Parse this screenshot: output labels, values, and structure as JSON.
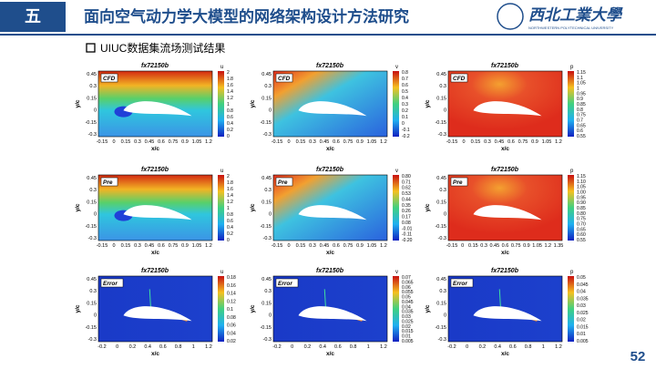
{
  "header": {
    "section": "五",
    "title": "面向空气动力学大模型的网络架构设计方法研究",
    "logo_cn": "西北工業大學",
    "logo_en": "NORTHWESTERN POLYTECHNICAL UNIVERSITY"
  },
  "subtitle": "UIUC数据集流场测试结果",
  "page_number": "52",
  "panels": [
    {
      "title": "fx72150b",
      "tag": "CFD",
      "variable": "u",
      "xlabel": "x/c",
      "ylabel": "y/c",
      "xticks": [
        "-0.15",
        "0",
        "0.15",
        "0.3",
        "0.45",
        "0.6",
        "0.75",
        "0.9",
        "1.05",
        "1.2"
      ],
      "yticks": [
        "0.45",
        "0.3",
        "0.15",
        "0",
        "-0.15",
        "-0.3"
      ],
      "colorbar_ticks": [
        "2",
        "1.8",
        "1.6",
        "1.4",
        "1.2",
        "1",
        "0.8",
        "0.6",
        "0.4",
        "0.2",
        "0"
      ]
    },
    {
      "title": "fx72150b",
      "tag": "CFD",
      "variable": "v",
      "xlabel": "x/c",
      "ylabel": "y/c",
      "xticks": [
        "-0.15",
        "0",
        "0.15",
        "0.3",
        "0.45",
        "0.6",
        "0.75",
        "0.9",
        "1.05",
        "1.2"
      ],
      "yticks": [
        "0.45",
        "0.3",
        "0.15",
        "0",
        "-0.15",
        "-0.3"
      ],
      "colorbar_ticks": [
        "0.8",
        "0.7",
        "0.6",
        "0.5",
        "0.4",
        "0.3",
        "0.2",
        "0.1",
        "0",
        "-0.1",
        "-0.2"
      ]
    },
    {
      "title": "fx72150b",
      "tag": "CFD",
      "variable": "p",
      "xlabel": "x/c",
      "ylabel": "y/c",
      "xticks": [
        "-0.15",
        "0",
        "0.15",
        "0.3",
        "0.45",
        "0.6",
        "0.75",
        "0.9",
        "1.05",
        "1.2"
      ],
      "yticks": [
        "0.45",
        "0.3",
        "0.15",
        "0",
        "-0.15",
        "-0.3"
      ],
      "colorbar_ticks": [
        "1.15",
        "1.1",
        "1.05",
        "1",
        "0.95",
        "0.9",
        "0.85",
        "0.8",
        "0.75",
        "0.7",
        "0.65",
        "0.6",
        "0.55"
      ]
    },
    {
      "title": "fx72150b",
      "tag": "Pre",
      "variable": "u",
      "xlabel": "x/c",
      "ylabel": "y/c",
      "xticks": [
        "-0.15",
        "0",
        "0.15",
        "0.3",
        "0.45",
        "0.6",
        "0.75",
        "0.9",
        "1.05",
        "1.2"
      ],
      "yticks": [
        "0.45",
        "0.3",
        "0.15",
        "0",
        "-0.15",
        "-0.3"
      ],
      "colorbar_ticks": [
        "2",
        "1.8",
        "1.6",
        "1.4",
        "1.2",
        "1",
        "0.8",
        "0.6",
        "0.4",
        "0.2",
        "0"
      ]
    },
    {
      "title": "fx72150b",
      "tag": "Pre",
      "variable": "v",
      "xlabel": "x/c",
      "ylabel": "y/c",
      "xticks": [
        "-0.15",
        "0",
        "0.15",
        "0.3",
        "0.45",
        "0.6",
        "0.75",
        "0.9",
        "1.05",
        "1.2"
      ],
      "yticks": [
        "0.45",
        "0.3",
        "0.15",
        "0",
        "-0.15",
        "-0.3"
      ],
      "colorbar_ticks": [
        "0.80",
        "0.71",
        "0.62",
        "0.53",
        "0.44",
        "0.35",
        "0.26",
        "0.17",
        "0.08",
        "-0.01",
        "-0.11",
        "-0.20"
      ]
    },
    {
      "title": "fx72150b",
      "tag": "Pre",
      "variable": "p",
      "xlabel": "x/c",
      "ylabel": "y/c",
      "xticks": [
        "-0.15",
        "0",
        "0.15",
        "0.3",
        "0.45",
        "0.6",
        "0.75",
        "0.9",
        "1.05",
        "1.2",
        "1.35"
      ],
      "yticks": [
        "0.45",
        "0.3",
        "0.15",
        "0",
        "-0.15",
        "-0.3"
      ],
      "colorbar_ticks": [
        "1.15",
        "1.10",
        "1.05",
        "1.00",
        "0.95",
        "0.90",
        "0.85",
        "0.80",
        "0.75",
        "0.70",
        "0.65",
        "0.60",
        "0.55"
      ]
    },
    {
      "title": "fx72150b",
      "tag": "Error",
      "variable": "u",
      "xlabel": "x/c",
      "ylabel": "y/c",
      "xticks": [
        "-0.2",
        "0",
        "0.2",
        "0.4",
        "0.6",
        "0.8",
        "1",
        "1.2"
      ],
      "yticks": [
        "0.45",
        "0.3",
        "0.15",
        "0",
        "-0.15",
        "-0.3"
      ],
      "colorbar_ticks": [
        "0.18",
        "0.16",
        "0.14",
        "0.12",
        "0.1",
        "0.08",
        "0.06",
        "0.04",
        "0.02"
      ]
    },
    {
      "title": "fx72150b",
      "tag": "Error",
      "variable": "v",
      "xlabel": "x/c",
      "ylabel": "y/c",
      "xticks": [
        "-0.2",
        "0",
        "0.2",
        "0.4",
        "0.6",
        "0.8",
        "1",
        "1.2"
      ],
      "yticks": [
        "0.45",
        "0.3",
        "0.15",
        "0",
        "-0.15",
        "-0.3"
      ],
      "colorbar_ticks": [
        "0.07",
        "0.065",
        "0.06",
        "0.055",
        "0.05",
        "0.045",
        "0.04",
        "0.035",
        "0.03",
        "0.025",
        "0.02",
        "0.015",
        "0.01",
        "0.005"
      ]
    },
    {
      "title": "fx72150b",
      "tag": "Error",
      "variable": "p",
      "xlabel": "x/c",
      "ylabel": "y/c",
      "xticks": [
        "-0.2",
        "0",
        "0.2",
        "0.4",
        "0.6",
        "0.8",
        "1",
        "1.2"
      ],
      "yticks": [
        "0.45",
        "0.3",
        "0.15",
        "0",
        "-0.15",
        "-0.3"
      ],
      "colorbar_ticks": [
        "0.05",
        "0.045",
        "0.04",
        "0.035",
        "0.03",
        "0.025",
        "0.02",
        "0.015",
        "0.01",
        "0.005"
      ]
    }
  ]
}
